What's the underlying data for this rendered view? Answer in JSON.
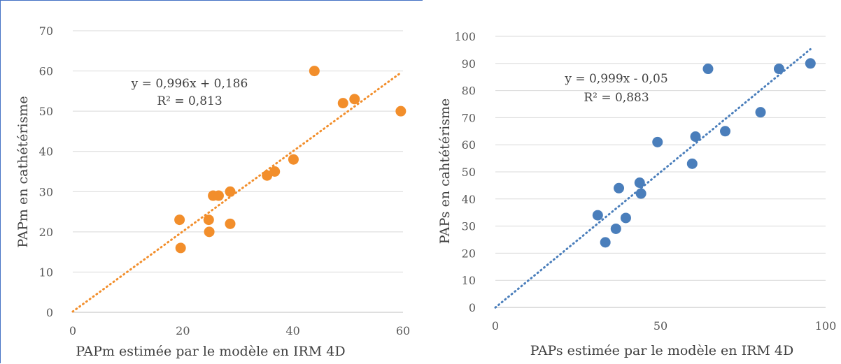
{
  "chart_data": [
    {
      "type": "scatter",
      "xlabel": "PAPm estimée par le modèle en IRM 4D",
      "ylabel": "PAPm en cathétérisme",
      "xlim": [
        0,
        60
      ],
      "ylim": [
        0,
        70
      ],
      "xticks": [
        0,
        20,
        40,
        60
      ],
      "yticks": [
        0,
        10,
        20,
        30,
        40,
        50,
        60,
        70
      ],
      "grid": "horizontal",
      "color": "#f28e2b",
      "points": [
        [
          19.4,
          23
        ],
        [
          19.6,
          16
        ],
        [
          24.7,
          23
        ],
        [
          24.8,
          20
        ],
        [
          25.5,
          29
        ],
        [
          26.5,
          29
        ],
        [
          28.6,
          30
        ],
        [
          28.6,
          22
        ],
        [
          35.3,
          34
        ],
        [
          36.7,
          35
        ],
        [
          40.1,
          38
        ],
        [
          43.9,
          60
        ],
        [
          49.1,
          52
        ],
        [
          51.2,
          53
        ],
        [
          59.6,
          50
        ]
      ],
      "trendline": {
        "slope": 0.996,
        "intercept": 0.186,
        "x_range": [
          0,
          59.6
        ]
      },
      "equation": "y = 0,996x + 0,186",
      "r2": "R² = 0,813"
    },
    {
      "type": "scatter",
      "xlabel": "PAPs estimée par le modèle en IRM 4D",
      "ylabel": "PAPs en cahtétérisme",
      "xlim": [
        0,
        100
      ],
      "ylim": [
        0,
        100
      ],
      "xticks": [
        0,
        50,
        100
      ],
      "yticks": [
        0,
        10,
        20,
        30,
        40,
        50,
        60,
        70,
        80,
        90,
        100
      ],
      "grid": "horizontal",
      "color": "#4a7ebb",
      "points": [
        [
          31,
          34
        ],
        [
          33.3,
          24
        ],
        [
          36.5,
          29
        ],
        [
          37.4,
          44
        ],
        [
          39.5,
          33
        ],
        [
          43.7,
          46
        ],
        [
          44.1,
          42
        ],
        [
          49.1,
          61
        ],
        [
          59.6,
          53
        ],
        [
          60.6,
          63
        ],
        [
          64.4,
          88
        ],
        [
          69.6,
          65
        ],
        [
          80.3,
          72
        ],
        [
          85.9,
          88
        ],
        [
          95.4,
          90
        ]
      ],
      "trendline": {
        "slope": 0.999,
        "intercept": -0.05,
        "x_range": [
          0,
          95.4
        ]
      },
      "equation": "y = 0,999x - 0,05",
      "r2": "R² = 0,883"
    }
  ]
}
